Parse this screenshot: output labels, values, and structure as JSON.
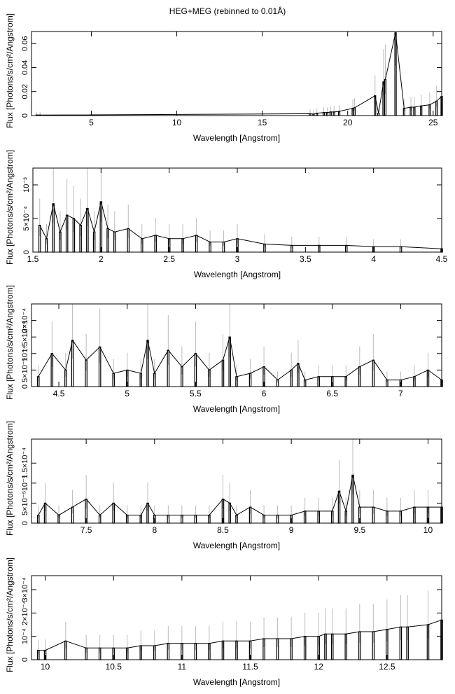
{
  "title": "HEG+MEG (rebinned to 0.01Å)",
  "chart_data": [
    {
      "type": "line",
      "panel": 1,
      "xlabel": "Wavelength [Angstrom]",
      "ylabel": "Flux [Photons/s/cm²/Angstrom]",
      "xlim": [
        1.5,
        25.5
      ],
      "ylim": [
        0,
        0.07
      ],
      "x_ticks": [
        5,
        10,
        15,
        20,
        25
      ],
      "x_tick_labels": [
        "5",
        "10",
        "15",
        "20",
        "25"
      ],
      "y_ticks": [
        0,
        0.02,
        0.04,
        0.06
      ],
      "y_tick_labels": [
        "0",
        "0.02",
        "0.04",
        "0.06"
      ],
      "series": [
        {
          "x": [
            1.8,
            2.0,
            17.8,
            18.0,
            18.2,
            18.6,
            18.8,
            19.0,
            19.2,
            19.5,
            20.3,
            20.4,
            21.6,
            21.8,
            22.1,
            22.2,
            22.8,
            23.3,
            23.7,
            23.9,
            24.3,
            24.8,
            25.2,
            25.5
          ],
          "y": [
            0.0005,
            0.0004,
            0.0015,
            0.0012,
            0.002,
            0.0025,
            0.0025,
            0.003,
            0.003,
            0.0035,
            0.006,
            0.0065,
            0.0165,
            0.002,
            0.028,
            0.03,
            0.069,
            0.006,
            0.007,
            0.007,
            0.008,
            0.009,
            0.012,
            0.016
          ]
        }
      ]
    },
    {
      "type": "line",
      "panel": 2,
      "xlabel": "Wavelength [Angstrom]",
      "ylabel": "Flux [Photons/s/cm²/Angstrom]",
      "xlim": [
        1.5,
        4.5
      ],
      "ylim": [
        0,
        0.00125
      ],
      "x_ticks": [
        1.5,
        2,
        2.5,
        3,
        3.5,
        4,
        4.5
      ],
      "x_tick_labels": [
        "1.5",
        "2",
        "2.5",
        "3",
        "3.5",
        "4",
        "4.5"
      ],
      "y_ticks": [
        0,
        0.0005,
        0.001
      ],
      "y_tick_labels": [
        "0",
        "5×10⁻⁴",
        "10⁻³"
      ],
      "series": [
        {
          "x": [
            1.55,
            1.6,
            1.65,
            1.7,
            1.75,
            1.8,
            1.85,
            1.9,
            1.95,
            2.0,
            2.05,
            2.1,
            2.2,
            2.3,
            2.4,
            2.5,
            2.6,
            2.7,
            2.8,
            2.9,
            3.0,
            3.2,
            3.4,
            3.6,
            3.8,
            4.0,
            4.2,
            4.5
          ],
          "y": [
            0.0004,
            0.0002,
            0.00072,
            0.0003,
            0.00055,
            0.0005,
            0.0004,
            0.00065,
            0.0003,
            0.00075,
            0.00035,
            0.0003,
            0.00035,
            0.0002,
            0.00025,
            0.0002,
            0.0002,
            0.00025,
            0.00015,
            0.00015,
            0.0002,
            0.00012,
            0.0001,
            0.0001,
            0.0001,
            8e-05,
            8e-05,
            5e-05
          ]
        }
      ]
    },
    {
      "type": "line",
      "panel": 3,
      "xlabel": "Wavelength [Angstrom]",
      "ylabel": "Flux [Photons/s/cm²/Angstrom]",
      "xlim": [
        4.3,
        7.3
      ],
      "ylim": [
        0,
        0.00025
      ],
      "x_ticks": [
        4.5,
        5,
        5.5,
        6,
        6.5,
        7
      ],
      "x_tick_labels": [
        "4.5",
        "5",
        "5.5",
        "6",
        "6.5",
        "7"
      ],
      "y_ticks": [
        0,
        5e-05,
        0.0001,
        0.00015,
        0.0002
      ],
      "y_tick_labels": [
        "0",
        "5×10⁻⁵",
        "10⁻⁴",
        "1.5×10⁻⁴",
        "2×10⁻⁴"
      ],
      "series": [
        {
          "x": [
            4.35,
            4.45,
            4.55,
            4.6,
            4.7,
            4.8,
            4.9,
            5.0,
            5.1,
            5.15,
            5.2,
            5.3,
            5.4,
            5.5,
            5.6,
            5.7,
            5.75,
            5.8,
            5.9,
            6.0,
            6.1,
            6.2,
            6.25,
            6.3,
            6.4,
            6.5,
            6.6,
            6.7,
            6.8,
            6.9,
            7.0,
            7.1,
            7.2,
            7.3
          ],
          "y": [
            3e-05,
            0.0001,
            5e-05,
            0.00014,
            8e-05,
            0.00012,
            4e-05,
            5e-05,
            4e-05,
            0.00014,
            4e-05,
            0.00011,
            6e-05,
            0.0001,
            5e-05,
            8e-05,
            0.00015,
            3e-05,
            4e-05,
            6e-05,
            2e-05,
            5e-05,
            7e-05,
            2e-05,
            3e-05,
            3e-05,
            3e-05,
            6e-05,
            8e-05,
            2e-05,
            2e-05,
            3e-05,
            5e-05,
            2e-05
          ]
        }
      ]
    },
    {
      "type": "line",
      "panel": 4,
      "xlabel": "Wavelength [Angstrom]",
      "ylabel": "Flux [Photons/s/cm²/Angstrom]",
      "xlim": [
        7.1,
        10.1
      ],
      "ylim": [
        0,
        0.00021
      ],
      "x_ticks": [
        7.5,
        8,
        8.5,
        9,
        9.5,
        10
      ],
      "x_tick_labels": [
        "7.5",
        "8",
        "8.5",
        "9",
        "9.5",
        "10"
      ],
      "y_ticks": [
        0,
        5e-05,
        0.0001,
        0.00015
      ],
      "y_tick_labels": [
        "0",
        "5×10⁻⁵",
        "10⁻⁴",
        "1.5×10⁻⁴"
      ],
      "series": [
        {
          "x": [
            7.15,
            7.2,
            7.3,
            7.4,
            7.5,
            7.6,
            7.7,
            7.8,
            7.9,
            7.95,
            8.0,
            8.1,
            8.2,
            8.3,
            8.4,
            8.5,
            8.55,
            8.6,
            8.7,
            8.8,
            8.9,
            9.0,
            9.1,
            9.2,
            9.3,
            9.35,
            9.4,
            9.45,
            9.5,
            9.6,
            9.7,
            9.8,
            9.9,
            10.0,
            10.1
          ],
          "y": [
            2e-05,
            5e-05,
            2e-05,
            4e-05,
            6e-05,
            2e-05,
            5e-05,
            2e-05,
            2e-05,
            5e-05,
            2e-05,
            2e-05,
            2e-05,
            2e-05,
            2e-05,
            6e-05,
            5e-05,
            2e-05,
            4e-05,
            2e-05,
            2e-05,
            2e-05,
            3e-05,
            3e-05,
            3e-05,
            8e-05,
            3e-05,
            0.00012,
            4e-05,
            4e-05,
            3e-05,
            3e-05,
            4e-05,
            4e-05,
            4e-05
          ]
        }
      ]
    },
    {
      "type": "line",
      "panel": 5,
      "xlabel": "Wavelength [Angstrom]",
      "ylabel": "Flux [Photons/s/cm²/Angstrom]",
      "xlim": [
        9.9,
        12.9
      ],
      "ylim": [
        0,
        0.00036
      ],
      "x_ticks": [
        10,
        10.5,
        11,
        11.5,
        12,
        12.5
      ],
      "x_tick_labels": [
        "10",
        "10.5",
        "11",
        "11.5",
        "12",
        "12.5"
      ],
      "y_ticks": [
        0,
        0.0001,
        0.0002,
        0.0003
      ],
      "y_tick_labels": [
        "0",
        "10⁻⁴",
        "2×10⁻⁴",
        "3×10⁻⁴"
      ],
      "series": [
        {
          "x": [
            9.95,
            10.0,
            10.15,
            10.3,
            10.4,
            10.5,
            10.6,
            10.7,
            10.8,
            10.9,
            11.0,
            11.1,
            11.2,
            11.3,
            11.4,
            11.5,
            11.6,
            11.7,
            11.8,
            11.9,
            12.0,
            12.05,
            12.1,
            12.2,
            12.3,
            12.4,
            12.5,
            12.6,
            12.65,
            12.8,
            12.9
          ],
          "y": [
            4e-05,
            4e-05,
            8e-05,
            5e-05,
            5e-05,
            5e-05,
            5e-05,
            6e-05,
            6e-05,
            7e-05,
            7e-05,
            7e-05,
            7e-05,
            8e-05,
            8e-05,
            8e-05,
            9e-05,
            9e-05,
            9e-05,
            0.0001,
            0.0001,
            0.00011,
            0.00011,
            0.00011,
            0.00012,
            0.00012,
            0.00013,
            0.00014,
            0.00014,
            0.00015,
            0.00017
          ]
        }
      ]
    }
  ]
}
